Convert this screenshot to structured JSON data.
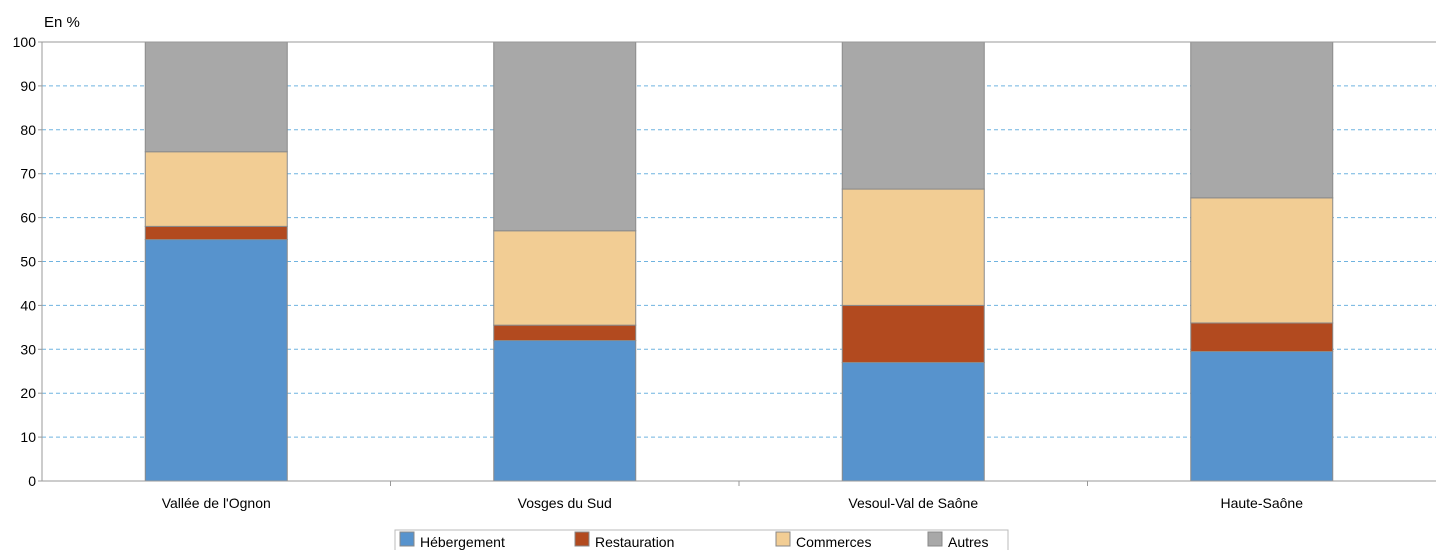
{
  "chart_data": {
    "type": "bar",
    "stacked": true,
    "unit_label": "En %",
    "ylim": [
      0,
      100
    ],
    "yticks": [
      0,
      10,
      20,
      30,
      40,
      50,
      60,
      70,
      80,
      90,
      100
    ],
    "grid": true,
    "legend_position": "bottom",
    "categories": [
      "Vallée de l'Ognon",
      "Vosges du Sud",
      "Vesoul-Val de Saône",
      "Haute-Saône"
    ],
    "series": [
      {
        "name": "Hébergement",
        "color": "#5793cd",
        "values": [
          55,
          32,
          27,
          29.5
        ]
      },
      {
        "name": "Restauration",
        "color": "#b24a1f",
        "values": [
          3,
          3.5,
          13,
          6.5
        ]
      },
      {
        "name": "Commerces",
        "color": "#f2cd94",
        "values": [
          17,
          21.5,
          26.5,
          28.5
        ]
      },
      {
        "name": "Autres",
        "color": "#a8a8a8",
        "values": [
          25,
          43,
          33.5,
          35.5
        ]
      }
    ]
  }
}
